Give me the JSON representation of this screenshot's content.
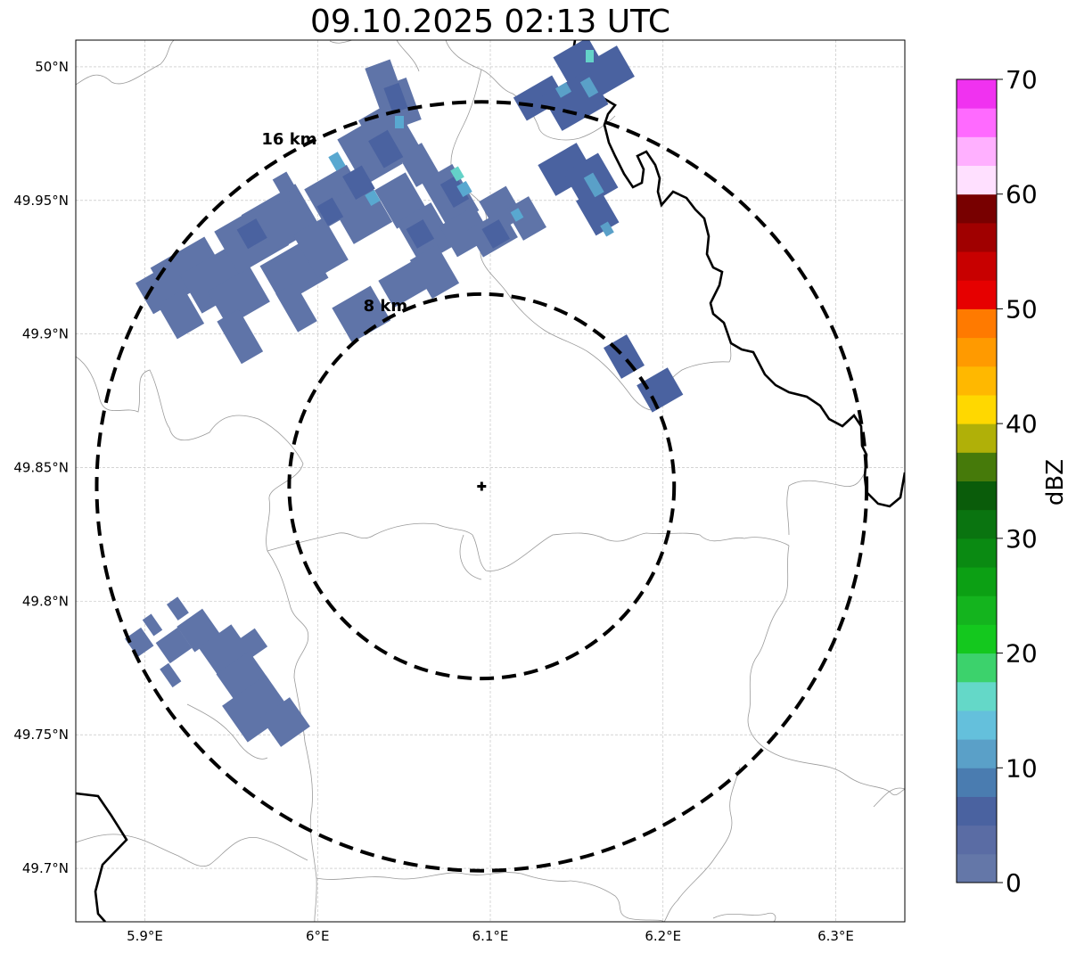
{
  "title": "09.10.2025 02:13 UTC",
  "map": {
    "lon_range": [
      5.86,
      6.34
    ],
    "lat_range": [
      49.68,
      50.01
    ],
    "x_ticks": [
      {
        "value": 5.9,
        "label": "5.9°E"
      },
      {
        "value": 6.0,
        "label": "6°E"
      },
      {
        "value": 6.1,
        "label": "6.1°E"
      },
      {
        "value": 6.2,
        "label": "6.2°E"
      },
      {
        "value": 6.3,
        "label": "6.3°E"
      }
    ],
    "y_ticks": [
      {
        "value": 50.0,
        "label": "50°N"
      },
      {
        "value": 49.95,
        "label": "49.95°N"
      },
      {
        "value": 49.9,
        "label": "49.9°N"
      },
      {
        "value": 49.85,
        "label": "49.85°N"
      },
      {
        "value": 49.8,
        "label": "49.8°N"
      },
      {
        "value": 49.75,
        "label": "49.75°N"
      },
      {
        "value": 49.7,
        "label": "49.7°N"
      }
    ],
    "radar_center": {
      "lon": 6.095,
      "lat": 49.843
    },
    "range_rings": [
      {
        "label": "8 km",
        "radius_km": 8
      },
      {
        "label": "16 km",
        "radius_km": 16
      }
    ],
    "colors": {
      "echo_base": "#5f74a8",
      "echo_mid": "#4a62a0",
      "echo_light": "#59a8d0",
      "echo_cyan": "#64d2c8",
      "border": "#000000",
      "admin": "#9a9a9a",
      "grid": "#bbbbbb"
    }
  },
  "colorbar": {
    "label": "dBZ",
    "min": 0,
    "max": 70,
    "step": 2.5,
    "ticks": [
      0,
      10,
      20,
      30,
      40,
      50,
      60,
      70
    ],
    "colors": [
      "#6477a8",
      "#5a6ca4",
      "#4a62a0",
      "#4a7cb0",
      "#5aa0c8",
      "#64c0dc",
      "#64d8c8",
      "#3cd26c",
      "#14c81e",
      "#14b41e",
      "#0ca014",
      "#0a8a12",
      "#0a7410",
      "#0a5c0a",
      "#467a0a",
      "#b0b008",
      "#ffd800",
      "#ffb800",
      "#ff9a00",
      "#ff7a00",
      "#e60000",
      "#c80000",
      "#a00000",
      "#780000",
      "#ffe0ff",
      "#ffb0ff",
      "#ff6aff",
      "#f032f0"
    ]
  }
}
